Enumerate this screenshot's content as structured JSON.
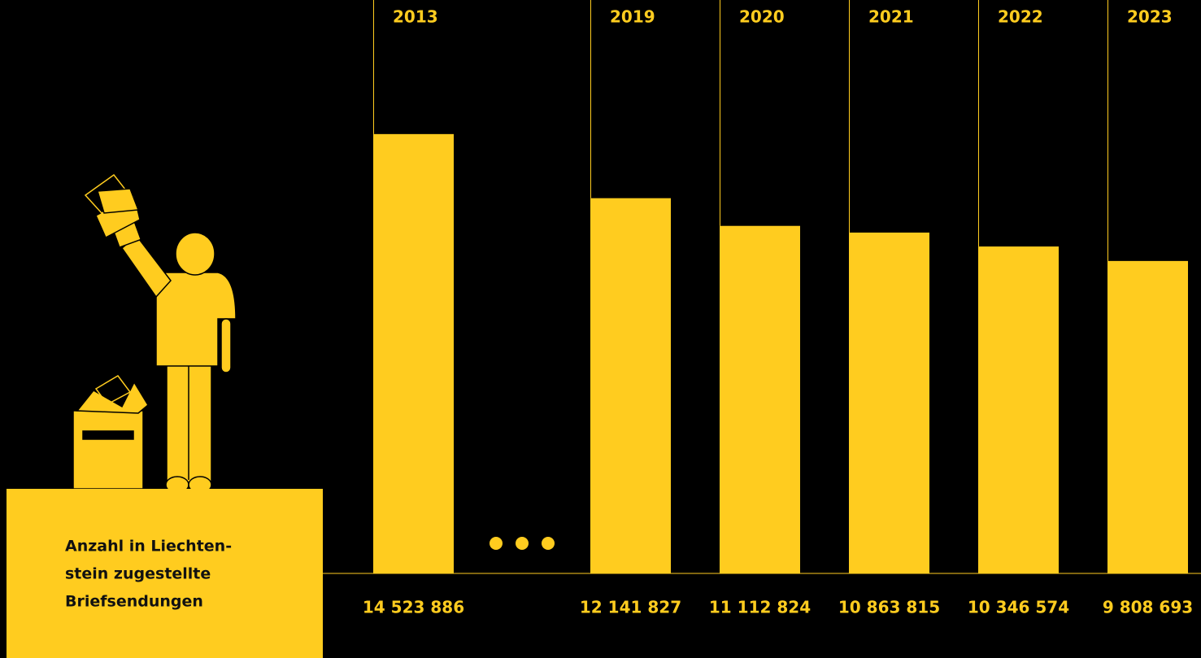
{
  "chart_data": {
    "type": "bar",
    "title": [
      "Anzahl in Liechten-",
      "stein zugestellte",
      "Briefsendungen"
    ],
    "categories": [
      "2013",
      "2019",
      "2020",
      "2021",
      "2022",
      "2023"
    ],
    "values": [
      14523886,
      12141827,
      11112824,
      10863815,
      10346574,
      9808693
    ],
    "value_labels": [
      "14 523 886",
      "12 141 827",
      "11 112 824",
      "10 863 815",
      "10 346 574",
      "9 808 693"
    ],
    "color": "#ffcc1f",
    "ylim": [
      -1800000,
      16000000
    ]
  }
}
